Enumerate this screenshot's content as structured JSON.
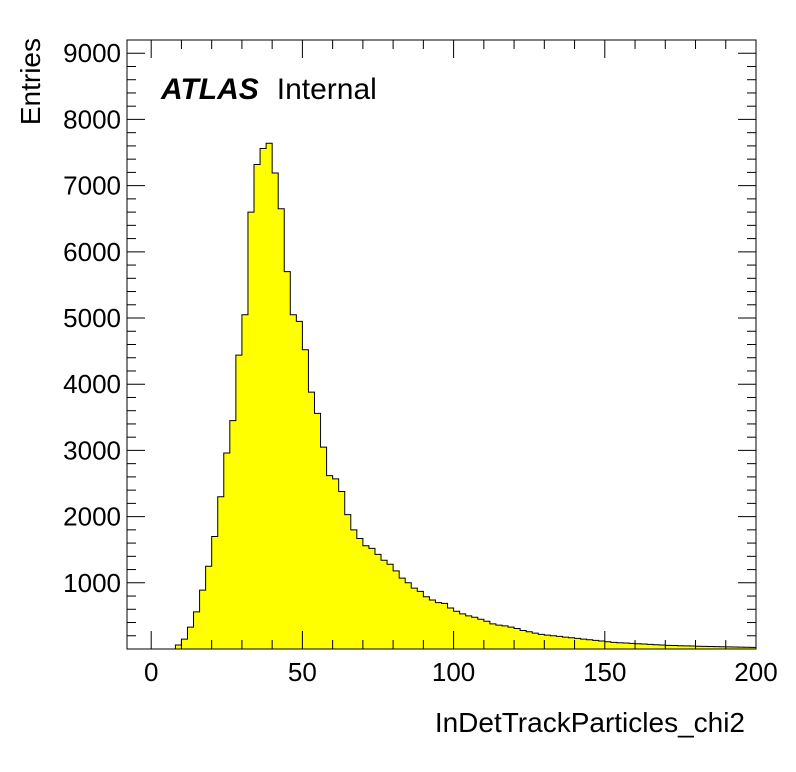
{
  "chart_data": {
    "type": "histogram",
    "title": "",
    "label_bold": "ATLAS",
    "label_rest": "Internal",
    "xlabel": "InDetTrackParticles_chi2",
    "ylabel": "Entries",
    "xlim": [
      -8,
      200
    ],
    "ylim": [
      0,
      9200
    ],
    "x_ticks": [
      0,
      50,
      100,
      150,
      200
    ],
    "y_ticks": [
      1000,
      2000,
      3000,
      4000,
      5000,
      6000,
      7000,
      8000,
      9000
    ],
    "bin_width": 2,
    "x_start": 0,
    "fill_color": "#ffff00",
    "line_color": "#000000",
    "grid": false,
    "values": [
      0,
      0,
      0,
      0,
      60,
      150,
      330,
      560,
      890,
      1250,
      1700,
      2300,
      2960,
      3450,
      4440,
      5050,
      6600,
      7320,
      7560,
      7640,
      7190,
      6650,
      5700,
      5050,
      4950,
      4520,
      3880,
      3560,
      3050,
      2620,
      2570,
      2380,
      2030,
      1800,
      1670,
      1560,
      1520,
      1430,
      1340,
      1280,
      1180,
      1070,
      1000,
      920,
      870,
      790,
      740,
      700,
      690,
      620,
      570,
      530,
      500,
      480,
      450,
      420,
      380,
      360,
      350,
      330,
      310,
      280,
      260,
      240,
      220,
      210,
      200,
      190,
      180,
      170,
      160,
      150,
      140,
      130,
      120,
      110,
      100,
      95,
      90,
      85,
      80,
      75,
      70,
      65,
      60,
      55,
      52,
      50,
      48,
      45,
      42,
      40,
      38,
      36,
      34,
      32,
      30,
      28,
      26,
      24
    ]
  }
}
